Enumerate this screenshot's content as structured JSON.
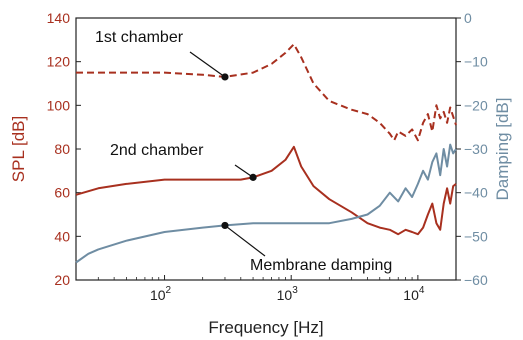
{
  "chart_data": {
    "type": "line",
    "x_label": "Frequency [Hz]",
    "x_scale": "log",
    "x_range": [
      20,
      20000
    ],
    "x_ticks": [
      {
        "value": 100,
        "base": "10",
        "exp": "2"
      },
      {
        "value": 1000,
        "base": "10",
        "exp": "3"
      },
      {
        "value": 10000,
        "base": "10",
        "exp": "4"
      }
    ],
    "left_axis": {
      "label": "SPL [dB]",
      "range": [
        20,
        140
      ],
      "ticks": [
        "20",
        "40",
        "60",
        "80",
        "100",
        "120",
        "140"
      ],
      "color": "#a8301f"
    },
    "right_axis": {
      "label": "Damping [dB]",
      "range": [
        -60,
        0
      ],
      "ticks": [
        "0",
        "−10",
        "−20",
        "−30",
        "−40",
        "−50",
        "−60"
      ],
      "color": "#6f8da3"
    },
    "series": [
      {
        "axis": "left",
        "style": "dashed",
        "color": "#a8301f",
        "points": [
          [
            20,
            115
          ],
          [
            50,
            115
          ],
          [
            100,
            115
          ],
          [
            200,
            114
          ],
          [
            300,
            113
          ],
          [
            500,
            115
          ],
          [
            700,
            119
          ],
          [
            900,
            124
          ],
          [
            1050,
            128
          ],
          [
            1200,
            122
          ],
          [
            1500,
            110
          ],
          [
            2000,
            102
          ],
          [
            3000,
            98
          ],
          [
            4000,
            96
          ],
          [
            5000,
            92
          ],
          [
            6000,
            87
          ],
          [
            6500,
            84
          ],
          [
            7000,
            88
          ],
          [
            8000,
            86
          ],
          [
            9000,
            89
          ],
          [
            10000,
            84
          ],
          [
            11000,
            92
          ],
          [
            12000,
            96
          ],
          [
            13000,
            88
          ],
          [
            14000,
            100
          ],
          [
            15000,
            94
          ],
          [
            16000,
            97
          ],
          [
            17000,
            92
          ],
          [
            18000,
            99
          ],
          [
            20000,
            91
          ]
        ]
      },
      {
        "axis": "left",
        "style": "solid",
        "color": "#a8301f",
        "points": [
          [
            20,
            59
          ],
          [
            30,
            62
          ],
          [
            50,
            64
          ],
          [
            100,
            66
          ],
          [
            200,
            66
          ],
          [
            400,
            66
          ],
          [
            500,
            67
          ],
          [
            700,
            70
          ],
          [
            900,
            75
          ],
          [
            1050,
            81
          ],
          [
            1200,
            72
          ],
          [
            1500,
            63
          ],
          [
            2000,
            57
          ],
          [
            3000,
            51
          ],
          [
            4000,
            46
          ],
          [
            5000,
            44
          ],
          [
            6000,
            43
          ],
          [
            7000,
            41
          ],
          [
            8000,
            43
          ],
          [
            9000,
            42
          ],
          [
            10000,
            41
          ],
          [
            11000,
            44
          ],
          [
            12000,
            50
          ],
          [
            13000,
            55
          ],
          [
            14000,
            46
          ],
          [
            15000,
            43
          ],
          [
            16000,
            55
          ],
          [
            17000,
            62
          ],
          [
            18000,
            55
          ],
          [
            19000,
            63
          ],
          [
            20000,
            64
          ]
        ]
      },
      {
        "axis": "right",
        "style": "solid",
        "color": "#6f8da3",
        "points": [
          [
            20,
            -56
          ],
          [
            25,
            -54
          ],
          [
            30,
            -53
          ],
          [
            50,
            -51
          ],
          [
            100,
            -49
          ],
          [
            200,
            -48
          ],
          [
            300,
            -47.5
          ],
          [
            500,
            -47
          ],
          [
            1000,
            -47
          ],
          [
            2000,
            -47
          ],
          [
            3000,
            -46
          ],
          [
            4000,
            -45
          ],
          [
            5000,
            -43
          ],
          [
            6000,
            -40
          ],
          [
            7000,
            -42
          ],
          [
            8000,
            -39
          ],
          [
            9000,
            -41
          ],
          [
            10000,
            -38
          ],
          [
            11000,
            -35
          ],
          [
            12000,
            -37
          ],
          [
            13000,
            -33
          ],
          [
            14000,
            -31
          ],
          [
            15000,
            -36
          ],
          [
            16000,
            -30
          ],
          [
            17000,
            -34
          ],
          [
            18000,
            -29
          ],
          [
            19000,
            -31
          ],
          [
            20000,
            -30
          ]
        ]
      }
    ],
    "annotations": [
      {
        "text": "1st chamber",
        "point": [
          300,
          113
        ],
        "axis": "left"
      },
      {
        "text": "2nd chamber",
        "point": [
          500,
          67
        ],
        "axis": "left"
      },
      {
        "text": "Membrane damping",
        "point": [
          300,
          -47.5
        ],
        "axis": "right"
      }
    ]
  }
}
